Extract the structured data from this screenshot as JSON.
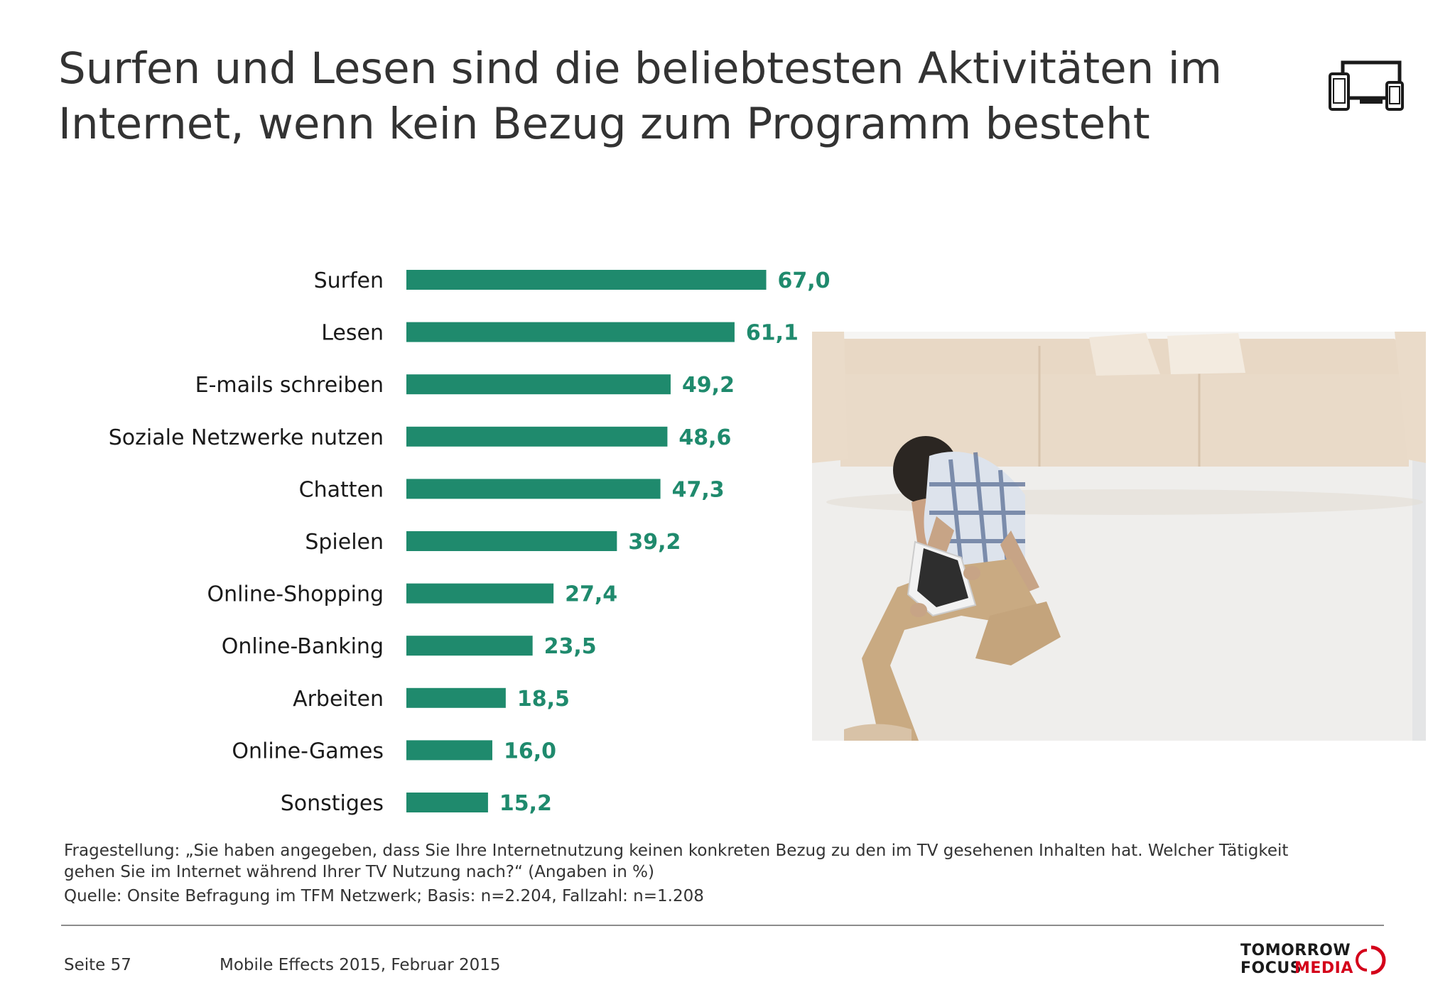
{
  "title": {
    "line1": "Surfen und Lesen sind die beliebtesten Aktivitäten im",
    "line2": "Internet, wenn kein Bezug zum Programm besteht"
  },
  "icons": {
    "header": "devices-icon"
  },
  "colors": {
    "bar": "#1f8a6d",
    "value_label": "#1f8a6d",
    "logo_accent": "#d4001a"
  },
  "chart_data": {
    "type": "bar",
    "orientation": "horizontal",
    "categories": [
      "Surfen",
      "Lesen",
      "E-mails schreiben",
      "Soziale Netzwerke nutzen",
      "Chatten",
      "Spielen",
      "Online-Shopping",
      "Online-Banking",
      "Arbeiten",
      "Online-Games",
      "Sonstiges"
    ],
    "values": [
      67.0,
      61.1,
      49.2,
      48.6,
      47.3,
      39.2,
      27.4,
      23.5,
      18.5,
      16.0,
      15.2
    ],
    "value_labels": [
      "67,0",
      "61,1",
      "49,2",
      "48,6",
      "47,3",
      "39,2",
      "27,4",
      "23,5",
      "18,5",
      "16,0",
      "15,2"
    ],
    "xlim": [
      0,
      100
    ],
    "grid": false,
    "legend": false
  },
  "notes": {
    "question_line1": "Fragestellung: „Sie haben angegeben, dass Sie Ihre Internetnutzung keinen konkreten Bezug zu den im TV gesehenen Inhalten hat. Welcher Tätigkeit",
    "question_line2": "gehen Sie im Internet während Ihrer TV Nutzung nach?“ (Angaben in %)",
    "source": "Quelle: Onsite Befragung im TFM Netzwerk; Basis: n=2.204, Fallzahl: n=1.208"
  },
  "footer": {
    "page": "Seite 57",
    "publication": "Mobile Effects 2015, Februar 2015"
  },
  "logo": {
    "line1": "TOMORROW",
    "line2a": "FOCUS",
    "line2b": "MEDIA"
  }
}
